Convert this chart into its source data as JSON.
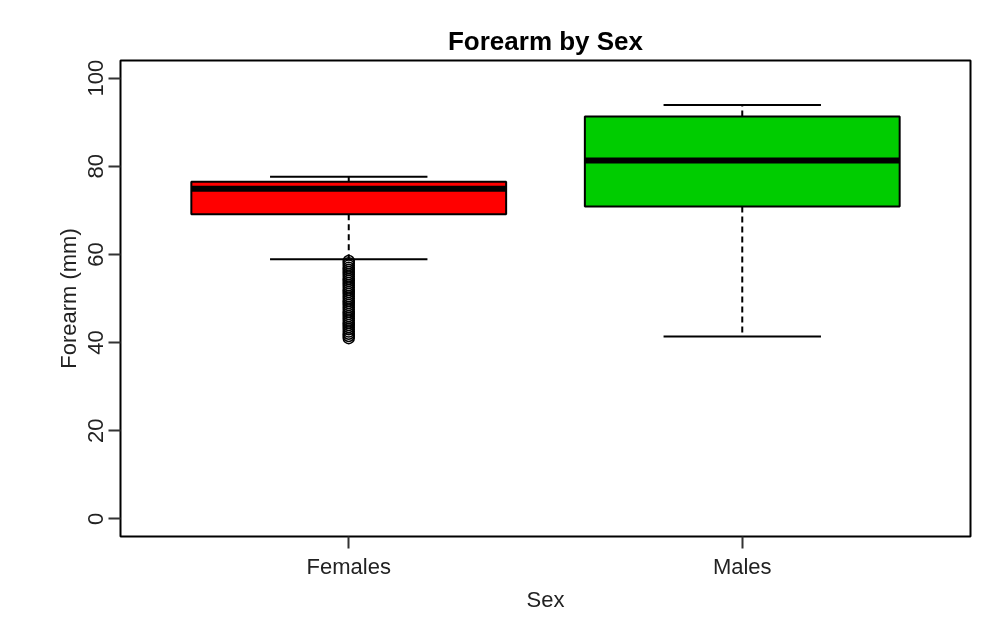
{
  "chart_data": {
    "type": "box",
    "title": "Forearm by Sex",
    "xlabel": "Sex",
    "ylabel": "Forearm (mm)",
    "categories": [
      "Females",
      "Males"
    ],
    "colors": [
      "#ff0000",
      "#00cc00"
    ],
    "boxes": [
      {
        "low": 58.9,
        "q1": 69.1,
        "median": 74.9,
        "q3": 76.5,
        "high": 77.6,
        "outliers": [
          41.0,
          41.5,
          42.0,
          42.5,
          43.0,
          43.5,
          44.0,
          44.5,
          45.0,
          45.5,
          46.0,
          46.5,
          47.0,
          47.5,
          48.0,
          48.5,
          49.0,
          49.5,
          50.0,
          50.5,
          51.0,
          51.5,
          52.0,
          52.5,
          53.0,
          53.5,
          54.0,
          54.5,
          55.0,
          55.5,
          56.0,
          56.5,
          57.0,
          57.5,
          58.0,
          58.5
        ]
      },
      {
        "low": 41.4,
        "q1": 70.9,
        "median": 81.3,
        "q3": 91.3,
        "high": 93.9
      }
    ],
    "ylim": [
      -4,
      104
    ],
    "yticks": [
      0,
      20,
      40,
      60,
      80,
      100
    ],
    "grid": false
  }
}
